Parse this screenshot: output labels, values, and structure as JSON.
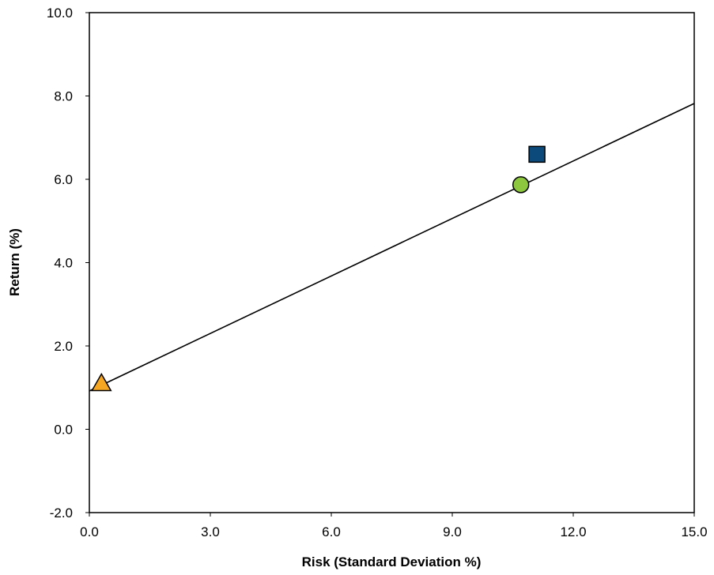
{
  "chart_data": {
    "type": "scatter",
    "title": "",
    "xlabel": "Risk (Standard Deviation %)",
    "ylabel": "Return (%)",
    "xlim": [
      0,
      15
    ],
    "ylim": [
      -2,
      10
    ],
    "xticks": [
      "0.0",
      "3.0",
      "6.0",
      "9.0",
      "12.0",
      "15.0"
    ],
    "yticks": [
      "-2.0",
      "0.0",
      "2.0",
      "4.0",
      "6.0",
      "8.0",
      "10.0"
    ],
    "grid": false,
    "legend": "none",
    "points": [
      {
        "x": 0.3,
        "y": 1.1,
        "marker": "triangle",
        "color": "#F5A623"
      },
      {
        "x": 11.1,
        "y": 6.6,
        "marker": "square",
        "color": "#0B4A7A"
      },
      {
        "x": 10.7,
        "y": 5.87,
        "marker": "circle",
        "color": "#8DC63F"
      }
    ],
    "line": {
      "x": [
        0,
        15
      ],
      "y": [
        0.92,
        7.82
      ],
      "color": "#000000"
    }
  }
}
